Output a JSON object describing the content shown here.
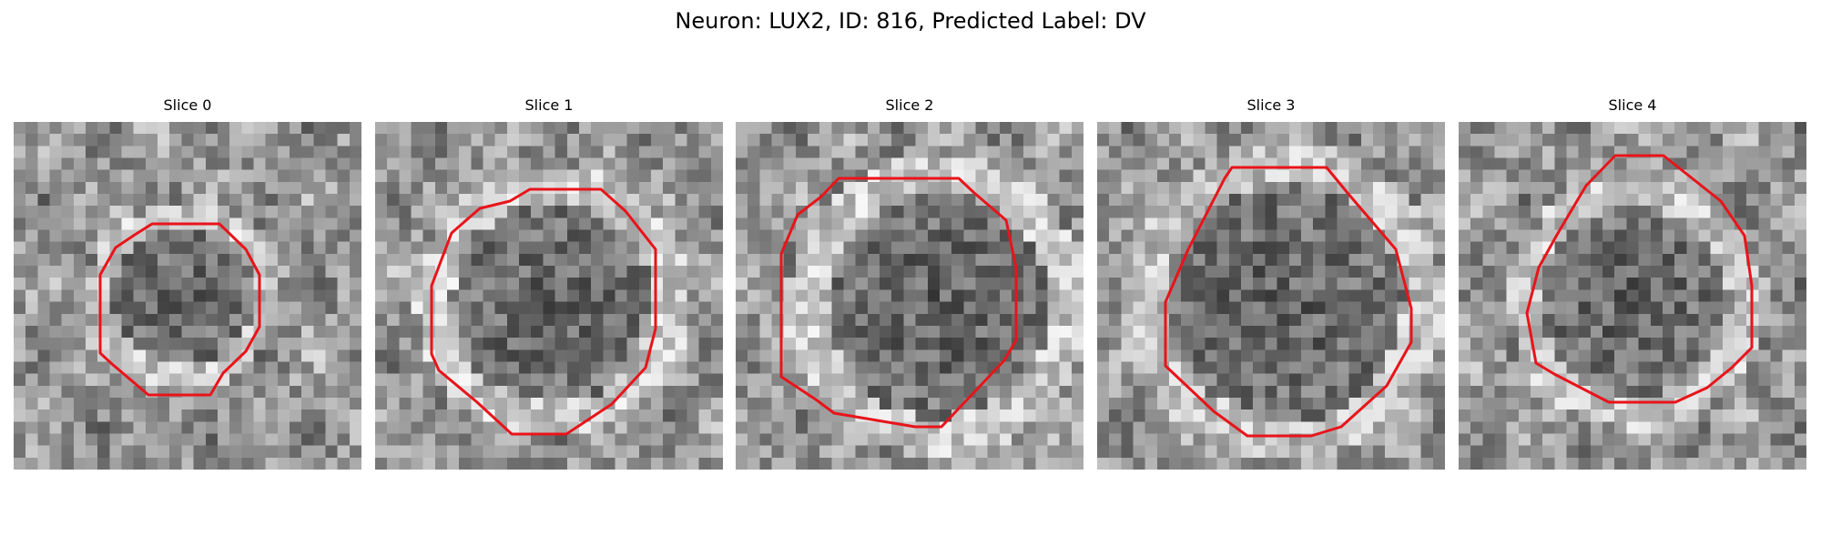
{
  "figure": {
    "title": "Neuron: LUX2, ID: 816, Predicted Label: DV"
  },
  "colors": {
    "contour": "#e8141a",
    "background": "#ffffff"
  },
  "panels": [
    {
      "title": "Slice 0"
    },
    {
      "title": "Slice 1"
    },
    {
      "title": "Slice 2"
    },
    {
      "title": "Slice 3"
    },
    {
      "title": "Slice 4"
    }
  ]
}
